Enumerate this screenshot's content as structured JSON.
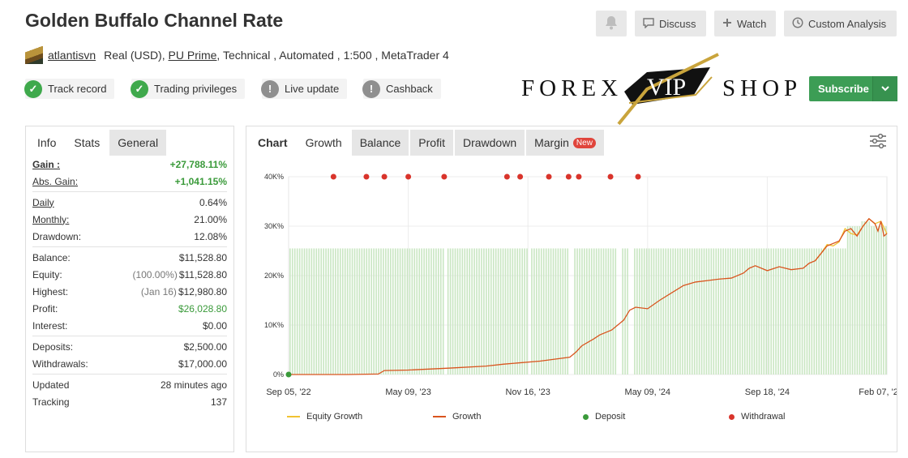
{
  "header": {
    "title": "Golden Buffalo Channel Rate",
    "buttons": {
      "discuss": "Discuss",
      "watch": "Watch",
      "custom_analysis": "Custom Analysis"
    }
  },
  "meta": {
    "user": "atlantisvn",
    "account": "Real (USD),",
    "broker": "PU Prime",
    "details": ", Technical , Automated , 1:500 , MetaTrader 4"
  },
  "badges": [
    {
      "label": "Track record",
      "status": "ok"
    },
    {
      "label": "Trading privileges",
      "status": "ok"
    },
    {
      "label": "Live update",
      "status": "no"
    },
    {
      "label": "Cashback",
      "status": "no"
    }
  ],
  "watermark": {
    "left": "FOREX",
    "center": "VIP",
    "right": "SHOP"
  },
  "subscribe": {
    "label": "Subscribe"
  },
  "left_tabs": [
    "Info",
    "Stats",
    "General"
  ],
  "stats": {
    "gain": {
      "k": "Gain :",
      "v": "+27,788.11%"
    },
    "abs_gain": {
      "k": "Abs. Gain:",
      "v": "+1,041.15%"
    },
    "daily": {
      "k": "Daily",
      "v": "0.64%"
    },
    "monthly": {
      "k": "Monthly:",
      "v": "21.00%"
    },
    "drawdown": {
      "k": "Drawdown:",
      "v": "12.08%"
    },
    "balance": {
      "k": "Balance:",
      "v": "$11,528.80"
    },
    "equity": {
      "k": "Equity:",
      "pct": "(100.00%)",
      "v": "$11,528.80"
    },
    "highest": {
      "k": "Highest:",
      "date": "(Jan 16)",
      "v": "$12,980.80"
    },
    "profit": {
      "k": "Profit:",
      "v": "$26,028.80"
    },
    "interest": {
      "k": "Interest:",
      "v": "$0.00"
    },
    "deposits": {
      "k": "Deposits:",
      "v": "$2,500.00"
    },
    "withdrawals": {
      "k": "Withdrawals:",
      "v": "$17,000.00"
    },
    "updated": {
      "k": "Updated",
      "v": "28 minutes ago"
    },
    "tracking": {
      "k": "Tracking",
      "v": "137"
    }
  },
  "chart_tabs": {
    "chart": "Chart",
    "growth": "Growth",
    "balance": "Balance",
    "profit": "Profit",
    "drawdown": "Drawdown",
    "margin": "Margin",
    "new": "New"
  },
  "colors": {
    "equity": "#f1c232",
    "growth": "#d9541e",
    "deposit": "#3a9a3a",
    "withdrawal": "#d9342b",
    "bars": "#c9e6c2",
    "accent_green": "#3c9d55"
  },
  "chart_data": {
    "type": "line",
    "x_ticks": [
      "Sep 05, '22",
      "May 09, '23",
      "Nov 16, '23",
      "May 09, '24",
      "Sep 18, '24",
      "Feb 07, '25"
    ],
    "y_ticks": [
      "0%",
      "10K%",
      "20K%",
      "30K%",
      "40K%"
    ],
    "ylim": [
      0,
      40000
    ],
    "legend": [
      "Equity Growth",
      "Growth",
      "Deposit",
      "Withdrawal"
    ],
    "growth": [
      [
        0,
        0
      ],
      [
        0.1,
        0
      ],
      [
        0.15,
        100
      ],
      [
        0.16,
        800
      ],
      [
        0.2,
        900
      ],
      [
        0.27,
        1300
      ],
      [
        0.33,
        1700
      ],
      [
        0.36,
        2100
      ],
      [
        0.42,
        2700
      ],
      [
        0.47,
        3500
      ],
      [
        0.48,
        4500
      ],
      [
        0.49,
        5800
      ],
      [
        0.51,
        7200
      ],
      [
        0.52,
        8000
      ],
      [
        0.54,
        9000
      ],
      [
        0.55,
        10000
      ],
      [
        0.56,
        11000
      ],
      [
        0.57,
        13000
      ],
      [
        0.58,
        13600
      ],
      [
        0.6,
        13300
      ],
      [
        0.62,
        15000
      ],
      [
        0.64,
        16500
      ],
      [
        0.66,
        18000
      ],
      [
        0.68,
        18700
      ],
      [
        0.7,
        19000
      ],
      [
        0.72,
        19300
      ],
      [
        0.74,
        19500
      ],
      [
        0.76,
        20500
      ],
      [
        0.77,
        21500
      ],
      [
        0.78,
        22000
      ],
      [
        0.8,
        21000
      ],
      [
        0.82,
        21800
      ],
      [
        0.84,
        21200
      ],
      [
        0.86,
        21500
      ],
      [
        0.87,
        22500
      ],
      [
        0.88,
        23000
      ],
      [
        0.89,
        24500
      ],
      [
        0.9,
        26000
      ],
      [
        0.92,
        27000
      ],
      [
        0.93,
        29000
      ],
      [
        0.94,
        29500
      ],
      [
        0.95,
        28000
      ],
      [
        0.96,
        30000
      ],
      [
        0.97,
        31500
      ],
      [
        0.98,
        30500
      ],
      [
        0.985,
        29000
      ],
      [
        0.99,
        31000
      ],
      [
        0.995,
        28000
      ],
      [
        1,
        28500
      ]
    ],
    "equity": [
      [
        0.88,
        23000
      ],
      [
        0.89,
        24500
      ],
      [
        0.9,
        26300
      ],
      [
        0.91,
        26000
      ],
      [
        0.92,
        26800
      ],
      [
        0.93,
        29500
      ],
      [
        0.94,
        28500
      ],
      [
        0.95,
        28200
      ],
      [
        0.96,
        30000
      ],
      [
        0.97,
        31500
      ],
      [
        0.98,
        30500
      ],
      [
        0.99,
        31000
      ],
      [
        1,
        28500
      ]
    ],
    "deposits": [
      0
    ],
    "withdrawals": [
      0.075,
      0.13,
      0.16,
      0.2,
      0.26,
      0.365,
      0.387,
      0.435,
      0.468,
      0.485,
      0.538,
      0.584
    ]
  }
}
